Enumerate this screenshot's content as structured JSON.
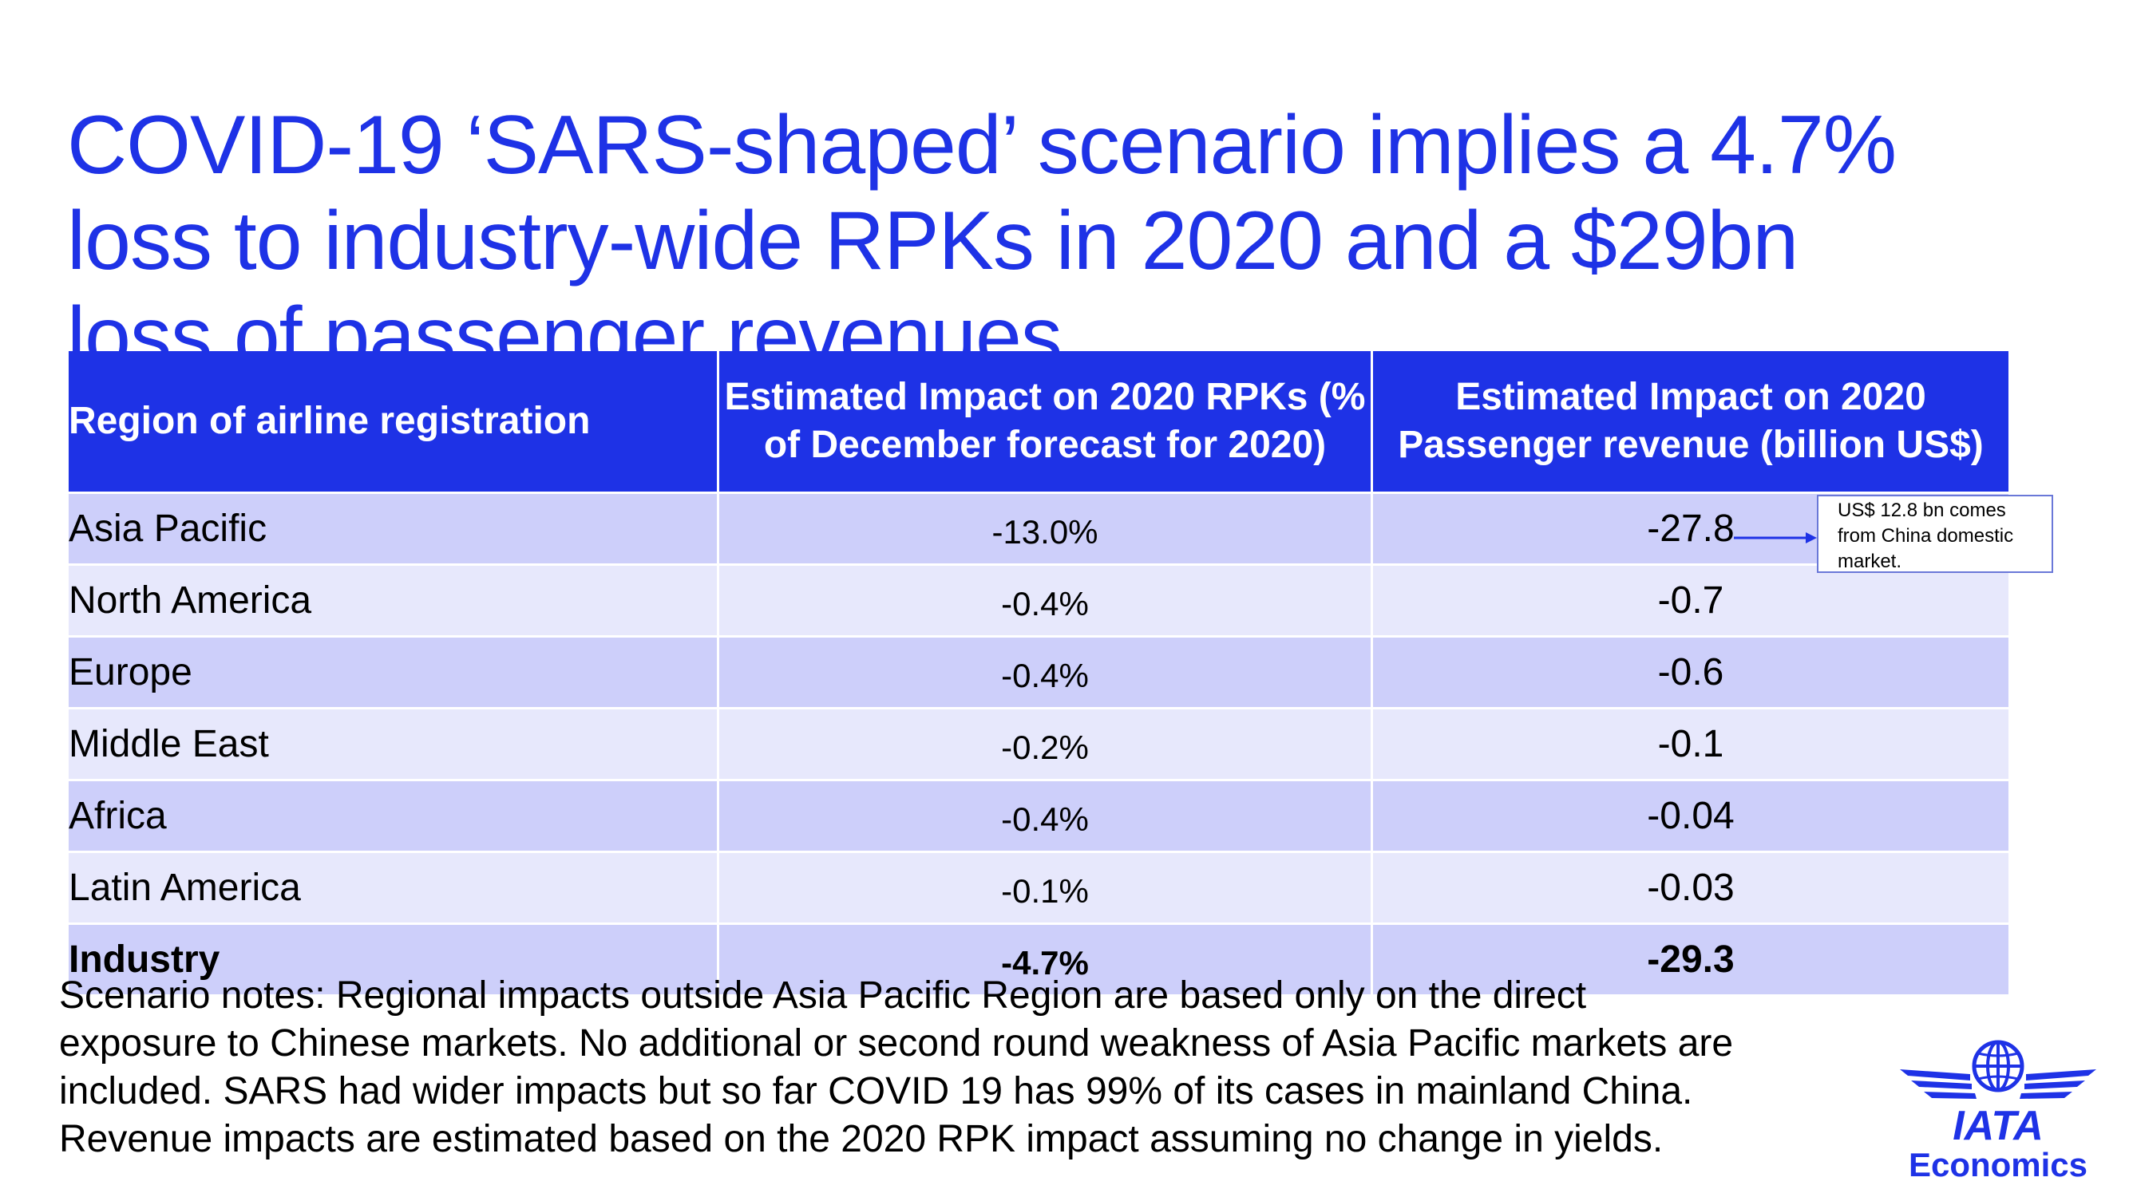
{
  "title": {
    "line1": "COVID-19 ‘SARS-shaped’ scenario implies a 4.7%",
    "line2": "loss to industry-wide RPKs in 2020 and a $29bn",
    "line3": "loss of passenger revenues"
  },
  "colors": {
    "brand_blue": "#1e32e6",
    "row_dark": "#cdcffa",
    "row_light": "#e7e8fc"
  },
  "chart_data": {
    "type": "table",
    "title": "COVID-19 ‘SARS-shaped’ scenario implies a 4.7% loss to industry-wide RPKs in 2020 and a $29bn loss of passenger revenues",
    "columns": [
      "Region of airline registration",
      "Estimated Impact on 2020 RPKs (% of December forecast for 2020)",
      "Estimated Impact on 2020 Passenger revenue (billion US$)"
    ],
    "rows": [
      {
        "region": "Asia Pacific",
        "rpk": "-13.0%",
        "revenue": "-27.8"
      },
      {
        "region": "North America",
        "rpk": "-0.4%",
        "revenue": "-0.7"
      },
      {
        "region": "Europe",
        "rpk": "-0.4%",
        "revenue": "-0.6"
      },
      {
        "region": "Middle East",
        "rpk": "-0.2%",
        "revenue": "-0.1"
      },
      {
        "region": "Africa",
        "rpk": "-0.4%",
        "revenue": "-0.04"
      },
      {
        "region": "Latin America",
        "rpk": "-0.1%",
        "revenue": "-0.03"
      },
      {
        "region": "Industry",
        "rpk": "-4.7%",
        "revenue": "-29.3"
      }
    ],
    "rpk_values_pct": [
      -13.0,
      -0.4,
      -0.4,
      -0.2,
      -0.4,
      -0.1,
      -4.7
    ],
    "revenue_values_bn_usd": [
      -27.8,
      -0.7,
      -0.6,
      -0.1,
      -0.04,
      -0.03,
      -29.3
    ],
    "annotation": {
      "target_row": "Asia Pacific",
      "line1": "US$ 12.8 bn comes",
      "line2": "from China domestic",
      "line3": "market."
    }
  },
  "notes": {
    "line1": "Scenario notes: Regional impacts outside Asia Pacific Region are based only on the direct",
    "line2": "exposure to Chinese markets. No additional or second round weakness of Asia Pacific markets are",
    "line3": "included. SARS had wider impacts but so far COVID 19 has 99% of its cases in mainland China.",
    "line4": "Revenue impacts are estimated based on the 2020 RPK impact assuming no change in yields."
  },
  "logo": {
    "wordmark": "IATA",
    "subtitle": "Economics",
    "icon": "globe-wings-icon"
  }
}
